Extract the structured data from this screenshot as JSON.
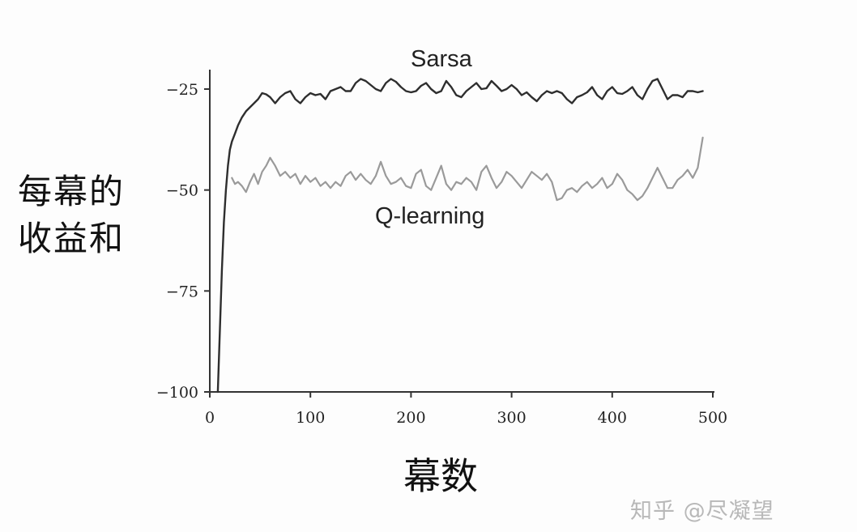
{
  "chart_data": {
    "type": "line",
    "xlabel": "幕数",
    "ylabel": "每幕的收益和",
    "xlim": [
      0,
      500
    ],
    "ylim": [
      -100,
      -20
    ],
    "xticks": [
      0,
      100,
      200,
      300,
      400,
      500
    ],
    "xtick_labels": [
      "0",
      "100",
      "200",
      "300",
      "400",
      "500"
    ],
    "yticks": [
      -25,
      -50,
      -75,
      -100
    ],
    "ytick_labels": [
      "−25",
      "−50",
      "−75",
      "−100"
    ],
    "grid": false,
    "series": [
      {
        "name": "Sarsa",
        "color": "#2e2e2e",
        "x": [
          8,
          10,
          12,
          14,
          16,
          18,
          20,
          22,
          25,
          28,
          32,
          36,
          40,
          44,
          48,
          52,
          56,
          60,
          65,
          70,
          75,
          80,
          85,
          90,
          95,
          100,
          105,
          110,
          115,
          120,
          125,
          130,
          135,
          140,
          145,
          150,
          155,
          160,
          165,
          170,
          175,
          180,
          185,
          190,
          195,
          200,
          205,
          210,
          215,
          220,
          225,
          230,
          235,
          240,
          245,
          250,
          255,
          260,
          265,
          270,
          275,
          280,
          285,
          290,
          295,
          300,
          305,
          310,
          315,
          320,
          325,
          330,
          335,
          340,
          345,
          350,
          355,
          360,
          365,
          370,
          375,
          380,
          385,
          390,
          395,
          400,
          405,
          410,
          415,
          420,
          425,
          430,
          435,
          440,
          445,
          450,
          455,
          460,
          465,
          470,
          475,
          480,
          485,
          490
        ],
        "y": [
          -100,
          -85,
          -70,
          -58,
          -50,
          -44,
          -40,
          -38,
          -36,
          -34,
          -32,
          -30.5,
          -29.5,
          -28.5,
          -27.5,
          -26,
          -26.3,
          -27,
          -28.5,
          -27,
          -26,
          -25.5,
          -27.5,
          -28.5,
          -27,
          -26,
          -26.5,
          -26.2,
          -27.5,
          -25.5,
          -25,
          -24.5,
          -25.5,
          -25.5,
          -23.5,
          -22.5,
          -23,
          -24,
          -25,
          -25.5,
          -23.5,
          -22.5,
          -23.2,
          -24.5,
          -25.5,
          -25.8,
          -25.5,
          -24.2,
          -23.5,
          -25,
          -26,
          -25.5,
          -23,
          -24.5,
          -26.5,
          -27,
          -25.5,
          -24.5,
          -23.5,
          -25,
          -24.8,
          -23,
          -24.2,
          -25.5,
          -25,
          -24,
          -25,
          -26.5,
          -25.8,
          -27,
          -28,
          -26.5,
          -25.5,
          -26,
          -25.5,
          -26,
          -27.5,
          -28.5,
          -27,
          -26.5,
          -25.8,
          -24.5,
          -26.5,
          -27.5,
          -25.5,
          -24.5,
          -26,
          -26.2,
          -25.5,
          -24.5,
          -26.5,
          -27.5,
          -25,
          -23,
          -22.5,
          -25,
          -27.5,
          -26.5,
          -26.5,
          -27,
          -25.5,
          -25.5,
          -25.8,
          -25.5
        ]
      },
      {
        "name": "Q-learning",
        "color": "#9a9a9a",
        "x": [
          22,
          25,
          28,
          32,
          36,
          40,
          44,
          48,
          52,
          56,
          60,
          65,
          70,
          75,
          80,
          85,
          90,
          95,
          100,
          105,
          110,
          115,
          120,
          125,
          130,
          135,
          140,
          145,
          150,
          155,
          160,
          165,
          170,
          175,
          180,
          185,
          190,
          195,
          200,
          205,
          210,
          215,
          220,
          225,
          230,
          235,
          240,
          245,
          250,
          255,
          260,
          265,
          270,
          275,
          280,
          285,
          290,
          295,
          300,
          305,
          310,
          315,
          320,
          325,
          330,
          335,
          340,
          345,
          350,
          355,
          360,
          365,
          370,
          375,
          380,
          385,
          390,
          395,
          400,
          405,
          410,
          415,
          420,
          425,
          430,
          435,
          440,
          445,
          450,
          455,
          460,
          465,
          470,
          475,
          480,
          485,
          490
        ],
        "y": [
          -47,
          -48.5,
          -48,
          -49,
          -50.5,
          -48,
          -46,
          -48.5,
          -45.5,
          -44,
          -42,
          -44,
          -46.5,
          -45.5,
          -47,
          -46,
          -48.5,
          -46.5,
          -48,
          -47,
          -49,
          -48,
          -49.5,
          -48,
          -49,
          -46.5,
          -45.5,
          -47.5,
          -46,
          -47.5,
          -48.5,
          -46.5,
          -43,
          -46.5,
          -48.5,
          -48,
          -47,
          -49,
          -49.5,
          -46,
          -45,
          -49,
          -50,
          -47,
          -44,
          -48.5,
          -50,
          -48,
          -48.5,
          -47,
          -48,
          -50,
          -45.5,
          -44,
          -47,
          -49.5,
          -48,
          -45.5,
          -46.5,
          -48,
          -49.5,
          -47.5,
          -45.5,
          -46.5,
          -47.5,
          -46,
          -48,
          -52.5,
          -52,
          -50,
          -49.5,
          -50.5,
          -49,
          -48,
          -49.5,
          -48.5,
          -47,
          -49.5,
          -48.5,
          -46,
          -47.5,
          -50,
          -51,
          -52.5,
          -51.5,
          -49.5,
          -47,
          -44.5,
          -47,
          -49.5,
          -49.5,
          -47.5,
          -46.5,
          -45,
          -47,
          -44.5,
          -37
        ]
      }
    ],
    "annotations": [
      "Sarsa",
      "Q-learning"
    ]
  },
  "watermark": "知乎 @尽凝望"
}
